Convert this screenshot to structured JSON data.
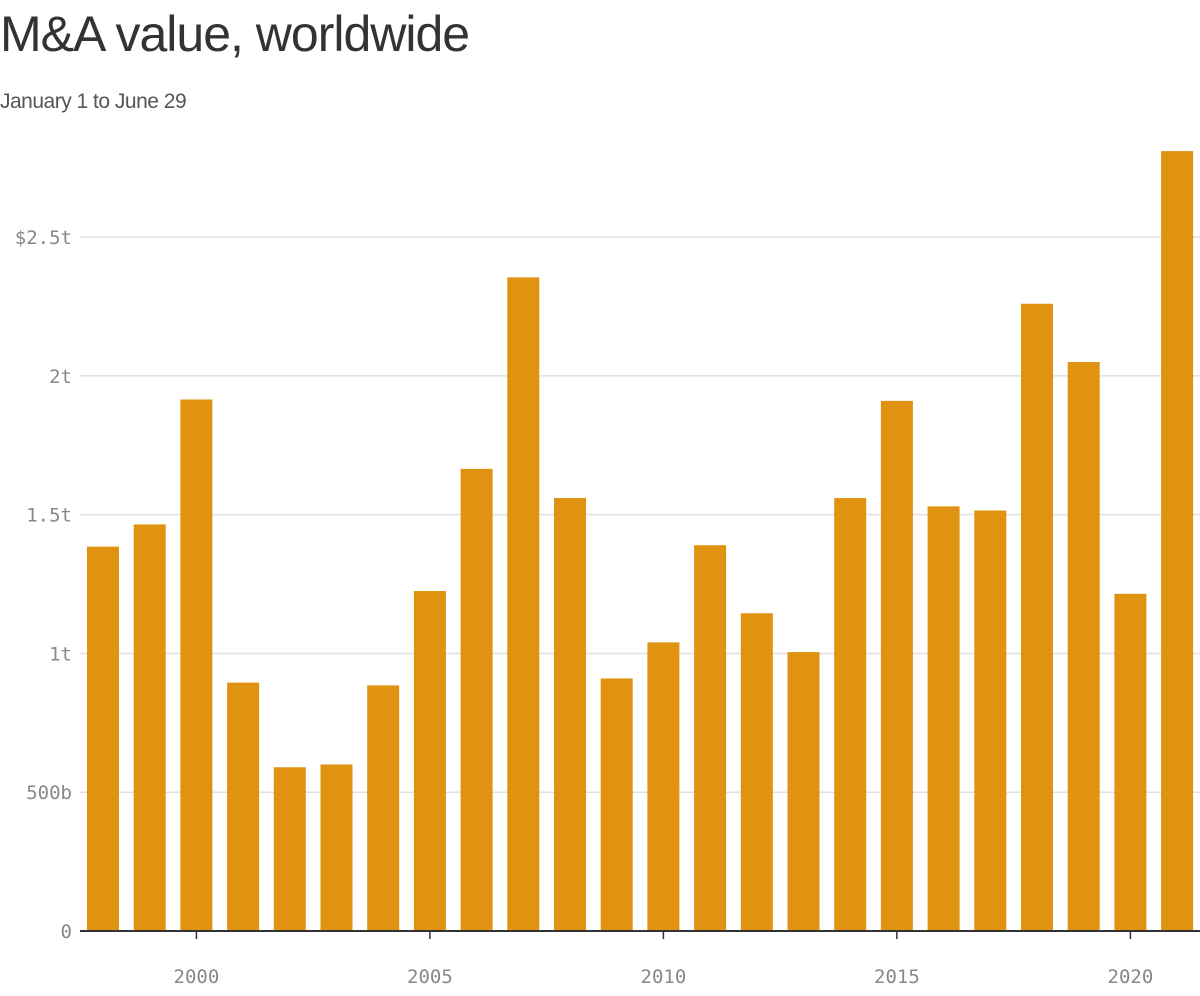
{
  "chart_data": {
    "type": "bar",
    "title": "M&A value, worldwide",
    "subtitle": "January 1 to June 29",
    "categories": [
      1998,
      1999,
      2000,
      2001,
      2002,
      2003,
      2004,
      2005,
      2006,
      2007,
      2008,
      2009,
      2010,
      2011,
      2012,
      2013,
      2014,
      2015,
      2016,
      2017,
      2018,
      2019,
      2020,
      2021
    ],
    "values": [
      1.385,
      1.465,
      1.915,
      0.895,
      0.59,
      0.6,
      0.885,
      1.225,
      1.665,
      2.355,
      1.56,
      0.91,
      1.04,
      1.39,
      1.145,
      1.005,
      1.56,
      1.91,
      1.53,
      1.515,
      2.26,
      2.05,
      1.215,
      2.81
    ],
    "unit": "trillion USD",
    "ylim": [
      0,
      2.85
    ],
    "yticks": [
      {
        "value": 0,
        "label": "0"
      },
      {
        "value": 0.5,
        "label": "500b"
      },
      {
        "value": 1,
        "label": "1t"
      },
      {
        "value": 1.5,
        "label": "1.5t"
      },
      {
        "value": 2,
        "label": "2t"
      },
      {
        "value": 2.5,
        "label": "$2.5t"
      }
    ],
    "xticks": [
      {
        "value": 2000,
        "label": "2000"
      },
      {
        "value": 2005,
        "label": "2005"
      },
      {
        "value": 2010,
        "label": "2010"
      },
      {
        "value": 2015,
        "label": "2015"
      },
      {
        "value": 2020,
        "label": "2020"
      }
    ],
    "xlabel": "",
    "ylabel": "",
    "grid": true,
    "legend": "none",
    "colors": {
      "bar": "#e09310",
      "grid": "#e0e0e0",
      "axis": "#333333",
      "tick_text": "#888888"
    }
  }
}
